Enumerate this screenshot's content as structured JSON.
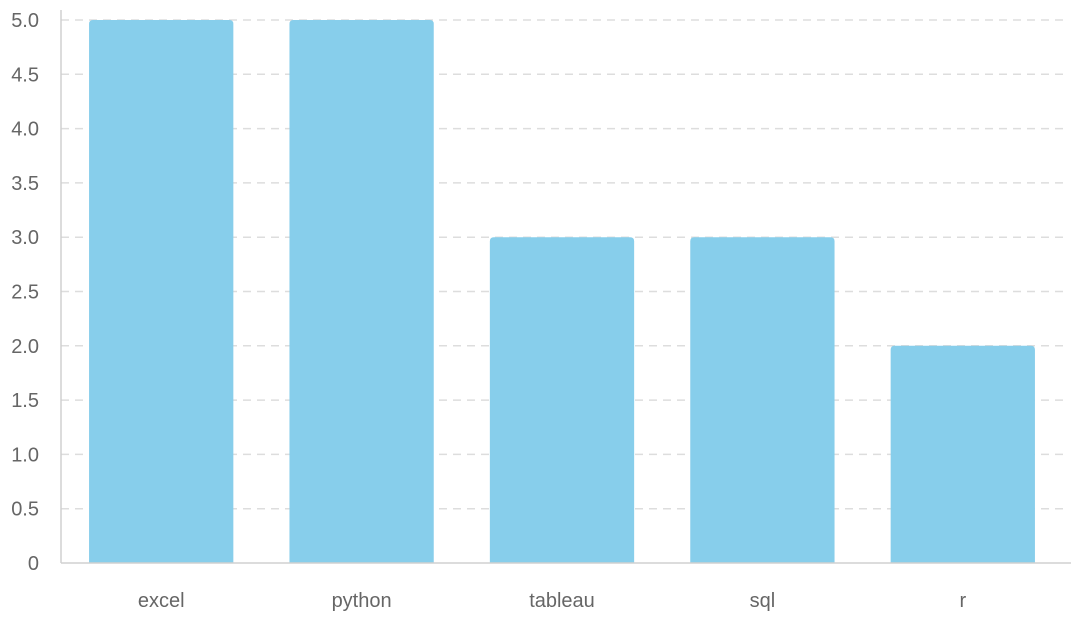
{
  "chart_data": {
    "type": "bar",
    "title": "",
    "xlabel": "",
    "ylabel": "",
    "categories": [
      "excel",
      "python",
      "tableau",
      "sql",
      "r"
    ],
    "values": [
      5,
      5,
      3,
      3,
      2
    ],
    "ylim": [
      0,
      5
    ],
    "yticks": [
      0,
      0.5,
      1,
      1.5,
      2,
      2.5,
      3,
      3.5,
      4,
      4.5,
      5
    ],
    "ytick_labels": [
      "0",
      "0.5",
      "1.0",
      "1.5",
      "2.0",
      "2.5",
      "3.0",
      "3.5",
      "4.0",
      "4.5",
      "5.0"
    ],
    "grid": true,
    "bar_color": "#87CEEB"
  }
}
